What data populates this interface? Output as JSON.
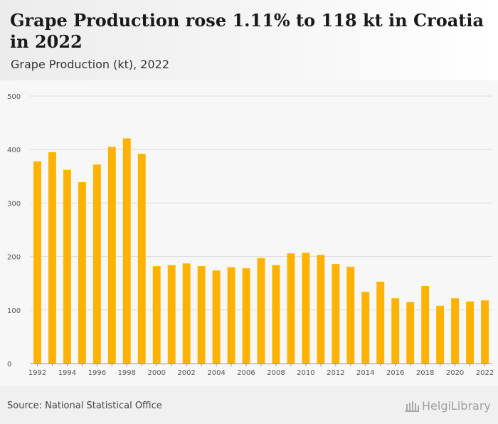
{
  "header": {
    "title": "Grape Production rose 1.11% to 118 kt in Croatia in 2022",
    "subtitle": "Grape Production (kt), 2022"
  },
  "footer": {
    "source": "Source: National Statistical Office",
    "logo_text": "HelgiLibrary"
  },
  "colors": {
    "bar": "#FFB300",
    "grid": "#dddddd",
    "plot_bg": "#f7f7f7",
    "axis_text": "#555555"
  },
  "chart_data": {
    "type": "bar",
    "title": "Grape Production (kt), 2022",
    "xlabel": "",
    "ylabel": "",
    "ylim": [
      0,
      500
    ],
    "yticks": [
      0,
      100,
      200,
      300,
      400,
      500
    ],
    "grid": true,
    "categories": [
      "1992",
      "1993",
      "1994",
      "1995",
      "1996",
      "1997",
      "1998",
      "1999",
      "2000",
      "2001",
      "2002",
      "2003",
      "2004",
      "2005",
      "2006",
      "2007",
      "2008",
      "2009",
      "2010",
      "2011",
      "2012",
      "2013",
      "2014",
      "2015",
      "2016",
      "2017",
      "2018",
      "2019",
      "2020",
      "2021",
      "2022"
    ],
    "xtick_labels": [
      "1992",
      "1994",
      "1996",
      "1998",
      "2000",
      "2002",
      "2004",
      "2006",
      "2008",
      "2010",
      "2012",
      "2014",
      "2016",
      "2018",
      "2020",
      "2022"
    ],
    "values": [
      378,
      395,
      362,
      339,
      372,
      405,
      421,
      392,
      182,
      184,
      187,
      182,
      174,
      180,
      178,
      197,
      184,
      206,
      207,
      203,
      186,
      181,
      134,
      153,
      122,
      115,
      145,
      108,
      122,
      116,
      118
    ]
  }
}
